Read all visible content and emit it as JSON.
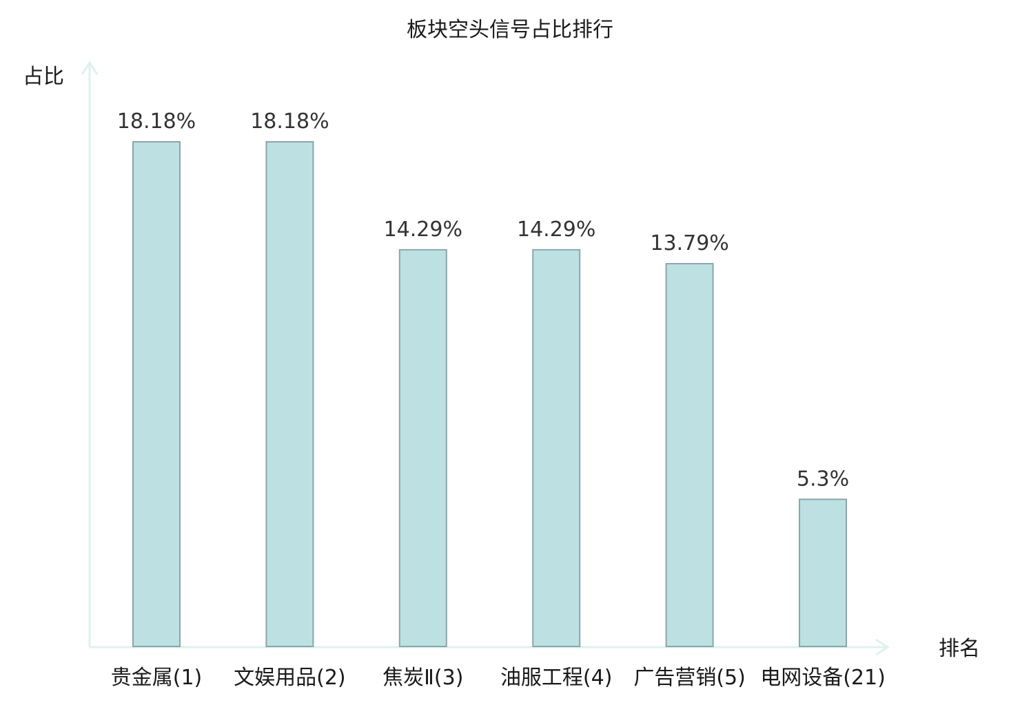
{
  "chart_data": {
    "type": "bar",
    "title": "板块空头信号占比排行",
    "xlabel": "排名",
    "ylabel": "占比",
    "categories": [
      "贵金属(1)",
      "文娱用品(2)",
      "焦炭Ⅱ(3)",
      "油服工程(4)",
      "广告营销(5)",
      "电网设备(21)"
    ],
    "values": [
      18.18,
      18.18,
      14.29,
      14.29,
      13.79,
      5.3
    ],
    "value_labels": [
      "18.18%",
      "18.18%",
      "14.29%",
      "14.29%",
      "13.79%",
      "5.3%"
    ],
    "highlight_index": 5,
    "ylim": [
      0,
      18.18
    ],
    "grid": false,
    "legend": "none",
    "colors": {
      "bar_fill": "#bde0e3",
      "bar_stroke": "#8aa6aa",
      "axis": "#dff1ef",
      "highlight_label": "#e0141e",
      "label": "#1a1a1a"
    }
  }
}
